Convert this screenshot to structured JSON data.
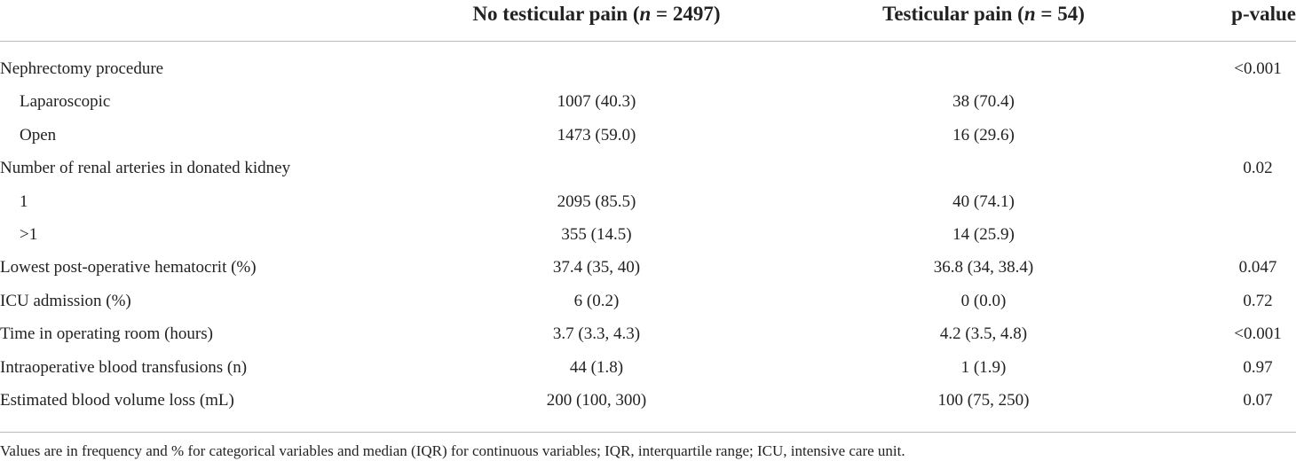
{
  "table": {
    "header": {
      "columns": [
        [
          "No testicular pain (",
          "n",
          " = 2497)"
        ],
        [
          "Testicular pain (",
          "n",
          " = 54)"
        ],
        [
          "p-value"
        ]
      ]
    },
    "sections": [
      {
        "label": "Nephrectomy procedure",
        "p": "<0.001",
        "rows": [
          {
            "label": "Laparoscopic",
            "values": [
              "1007 (40.3)",
              "38 (70.4)"
            ]
          },
          {
            "label": "Open",
            "values": [
              "1473 (59.0)",
              "16 (29.6)"
            ]
          }
        ]
      },
      {
        "label": "Number of renal arteries in donated kidney",
        "p": "0.02",
        "rows": [
          {
            "label": "1",
            "values": [
              "2095 (85.5)",
              "40 (74.1)"
            ]
          },
          {
            "label": ">1",
            "values": [
              "355 (14.5)",
              "14 (25.9)"
            ]
          }
        ]
      },
      {
        "label": "Lowest post-operative hematocrit (%)",
        "values": [
          "37.4 (35, 40)",
          "36.8 (34, 38.4)"
        ],
        "p": "0.047"
      },
      {
        "label": "ICU admission (%)",
        "values": [
          "6 (0.2)",
          "0 (0.0)"
        ],
        "p": "0.72"
      },
      {
        "label": "Time in operating room (hours)",
        "values": [
          "3.7 (3.3, 4.3)",
          "4.2 (3.5, 4.8)"
        ],
        "p": "<0.001"
      },
      {
        "label": "Intraoperative blood transfusions (n)",
        "values": [
          "44 (1.8)",
          "1 (1.9)"
        ],
        "p": "0.97"
      },
      {
        "label": "Estimated blood volume loss (mL)",
        "values": [
          "200 (100, 300)",
          "100 (75, 250)"
        ],
        "p": "0.07"
      }
    ],
    "footnote": "Values are in frequency and % for categorical variables and median (IQR) for continuous variables; IQR, interquartile range; ICU, intensive care unit."
  }
}
